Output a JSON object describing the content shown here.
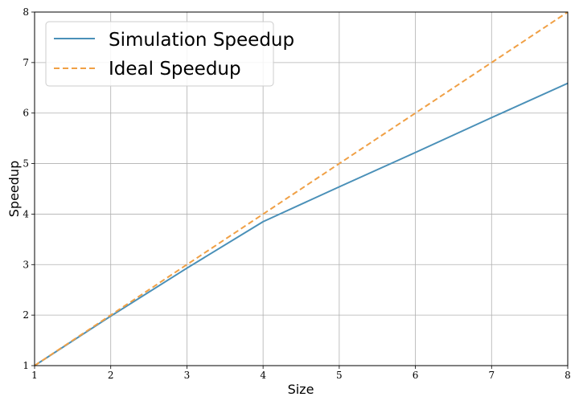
{
  "chart_data": {
    "type": "line",
    "title": "",
    "xlabel": "Size",
    "ylabel": "Speedup",
    "xlim": [
      1,
      8
    ],
    "ylim": [
      1,
      8
    ],
    "xticks": [
      "1",
      "2",
      "3",
      "4",
      "5",
      "6",
      "7",
      "8"
    ],
    "yticks": [
      "1",
      "2",
      "3",
      "4",
      "5",
      "6",
      "7",
      "8"
    ],
    "grid": true,
    "legend_position": "top-left",
    "x": [
      1,
      2,
      3,
      4,
      5,
      6,
      7,
      8
    ],
    "series": [
      {
        "name": "Simulation Speedup",
        "values": [
          1,
          1.98,
          2.93,
          3.85,
          4.54,
          5.22,
          5.91,
          6.59
        ],
        "color": "#4a90b8",
        "style": "solid"
      },
      {
        "name": "Ideal Speedup",
        "values": [
          1,
          2,
          3,
          4,
          5,
          6,
          7,
          8
        ],
        "color": "#f0a045",
        "style": "dashed"
      }
    ]
  }
}
